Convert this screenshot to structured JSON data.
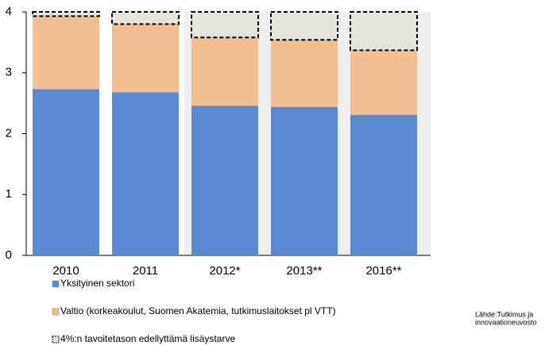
{
  "chart_data": {
    "type": "stacked_bar",
    "categories": [
      "2010",
      "2011",
      "2012*",
      "2013**",
      "2016**"
    ],
    "series": [
      {
        "name": "Yksityinen  sektori",
        "color": "#5a8bd2",
        "values": [
          2.73,
          2.68,
          2.46,
          2.44,
          2.31
        ]
      },
      {
        "name": "Valtio (korkeakoulut, Suomen Akatemia, tutkimuslaitokset pl VTT)",
        "color": "#f2bf92",
        "values": [
          1.2,
          1.12,
          1.12,
          1.1,
          1.06
        ]
      },
      {
        "name": "4%:n tavoitetason edellyttämä lisäystarve",
        "color": "#e6e5dc",
        "dashed": true,
        "values": [
          0.07,
          0.2,
          0.42,
          0.46,
          0.63
        ]
      }
    ],
    "ylim": [
      0,
      4
    ],
    "yticks": [
      0,
      1,
      2,
      3,
      4
    ],
    "grid": false,
    "source": [
      "Lähde:Tutkimus ja",
      "innovaationeuvosto"
    ]
  }
}
